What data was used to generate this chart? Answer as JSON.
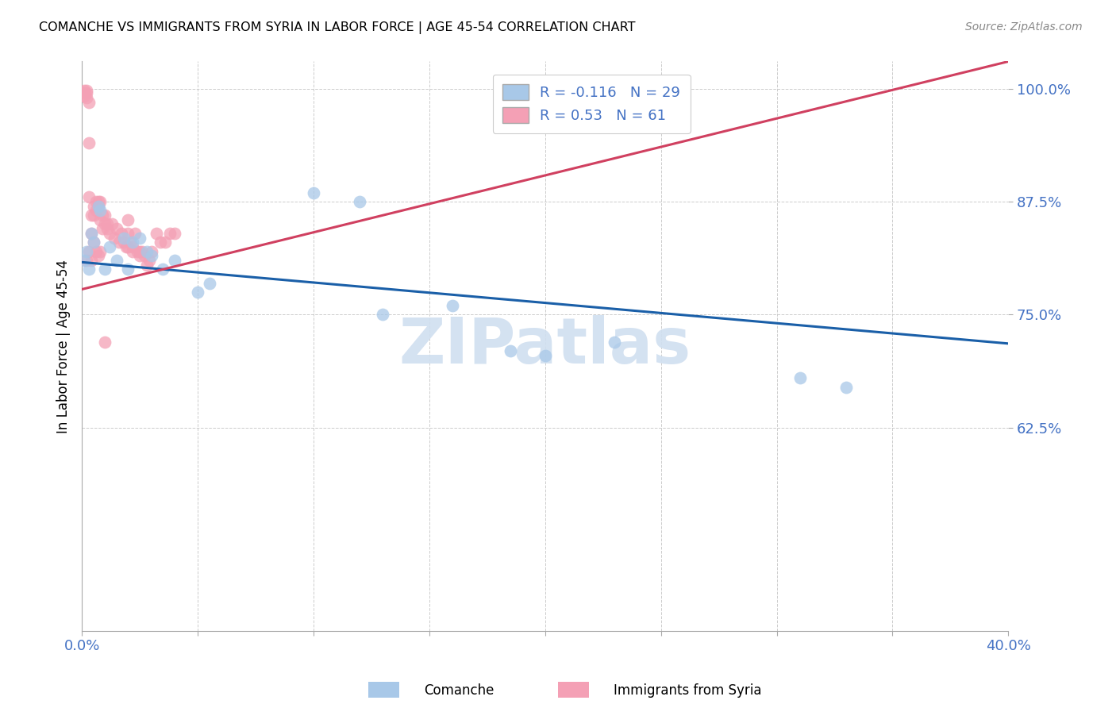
{
  "title": "COMANCHE VS IMMIGRANTS FROM SYRIA IN LABOR FORCE | AGE 45-54 CORRELATION CHART",
  "source": "Source: ZipAtlas.com",
  "ylabel": "In Labor Force | Age 45-54",
  "legend_label_blue": "Comanche",
  "legend_label_pink": "Immigrants from Syria",
  "R_blue": -0.116,
  "N_blue": 29,
  "R_pink": 0.53,
  "N_pink": 61,
  "xlim": [
    0.0,
    0.4
  ],
  "ylim": [
    0.4,
    1.03
  ],
  "yticks": [
    0.625,
    0.75,
    0.875,
    1.0
  ],
  "ytick_labels": [
    "62.5%",
    "75.0%",
    "87.5%",
    "100.0%"
  ],
  "xticks": [
    0.0,
    0.05,
    0.1,
    0.15,
    0.2,
    0.25,
    0.3,
    0.35,
    0.4
  ],
  "xtick_labels": [
    "0.0%",
    "",
    "",
    "",
    "",
    "",
    "",
    "",
    "40.0%"
  ],
  "color_blue": "#a8c8e8",
  "color_pink": "#f4a0b5",
  "line_color_blue": "#1a5fa8",
  "line_color_pink": "#d04060",
  "watermark_color": "#d0dff0",
  "blue_x": [
    0.001,
    0.002,
    0.003,
    0.004,
    0.005,
    0.007,
    0.008,
    0.01,
    0.012,
    0.015,
    0.018,
    0.02,
    0.022,
    0.025,
    0.028,
    0.03,
    0.035,
    0.04,
    0.05,
    0.055,
    0.1,
    0.12,
    0.13,
    0.16,
    0.185,
    0.2,
    0.23,
    0.31,
    0.33
  ],
  "blue_y": [
    0.81,
    0.82,
    0.8,
    0.84,
    0.83,
    0.87,
    0.865,
    0.8,
    0.825,
    0.81,
    0.835,
    0.8,
    0.83,
    0.835,
    0.82,
    0.815,
    0.8,
    0.81,
    0.775,
    0.785,
    0.885,
    0.875,
    0.75,
    0.76,
    0.71,
    0.705,
    0.72,
    0.68,
    0.67
  ],
  "pink_x": [
    0.001,
    0.001,
    0.001,
    0.002,
    0.002,
    0.002,
    0.003,
    0.003,
    0.003,
    0.004,
    0.004,
    0.005,
    0.005,
    0.006,
    0.006,
    0.007,
    0.007,
    0.008,
    0.008,
    0.009,
    0.009,
    0.01,
    0.01,
    0.011,
    0.011,
    0.012,
    0.013,
    0.014,
    0.015,
    0.016,
    0.017,
    0.018,
    0.019,
    0.02,
    0.02,
    0.021,
    0.022,
    0.023,
    0.024,
    0.025,
    0.026,
    0.027,
    0.028,
    0.029,
    0.03,
    0.032,
    0.034,
    0.036,
    0.038,
    0.04,
    0.002,
    0.003,
    0.004,
    0.005,
    0.006,
    0.007,
    0.008,
    0.02,
    0.022,
    0.025,
    0.01
  ],
  "pink_y": [
    0.998,
    0.995,
    0.992,
    0.998,
    0.995,
    0.99,
    0.985,
    0.94,
    0.88,
    0.86,
    0.84,
    0.87,
    0.86,
    0.875,
    0.865,
    0.875,
    0.87,
    0.875,
    0.855,
    0.86,
    0.845,
    0.86,
    0.85,
    0.85,
    0.845,
    0.84,
    0.85,
    0.835,
    0.845,
    0.83,
    0.84,
    0.83,
    0.825,
    0.855,
    0.84,
    0.83,
    0.825,
    0.84,
    0.82,
    0.815,
    0.82,
    0.815,
    0.805,
    0.81,
    0.82,
    0.84,
    0.83,
    0.83,
    0.84,
    0.84,
    0.81,
    0.82,
    0.81,
    0.83,
    0.82,
    0.815,
    0.82,
    0.825,
    0.82,
    0.82,
    0.72
  ],
  "blue_trend_x0": 0.0,
  "blue_trend_x1": 0.4,
  "blue_trend_y0": 0.808,
  "blue_trend_y1": 0.718,
  "pink_trend_x0": 0.0,
  "pink_trend_x1": 0.4,
  "pink_trend_y0": 0.778,
  "pink_trend_y1": 1.03
}
